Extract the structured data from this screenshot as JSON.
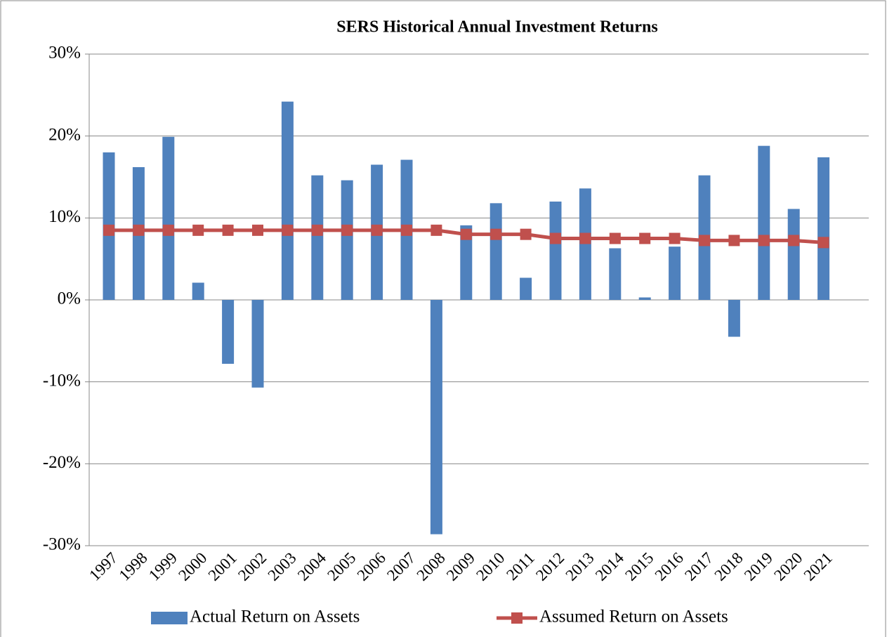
{
  "chart_data": {
    "type": "bar",
    "title": "SERS Historical Annual Investment Returns",
    "categories": [
      "1997",
      "1998",
      "1999",
      "2000",
      "2001",
      "2002",
      "2003",
      "2004",
      "2005",
      "2006",
      "2007",
      "2008",
      "2009",
      "2010",
      "2011",
      "2012",
      "2013",
      "2014",
      "2015",
      "2016",
      "2017",
      "2018",
      "2019",
      "2020",
      "2021"
    ],
    "series": [
      {
        "name": "Actual Return on Assets",
        "type": "bar",
        "color": "#4f81bd",
        "values": [
          18.0,
          16.2,
          19.9,
          2.1,
          -7.8,
          -10.7,
          24.2,
          15.2,
          14.6,
          16.5,
          17.1,
          -28.6,
          9.1,
          11.8,
          2.7,
          12.0,
          13.6,
          6.3,
          0.3,
          6.5,
          15.2,
          -4.5,
          18.8,
          11.1,
          17.4
        ]
      },
      {
        "name": "Assumed Return on Assets",
        "type": "line",
        "color": "#c0504d",
        "values": [
          8.5,
          8.5,
          8.5,
          8.5,
          8.5,
          8.5,
          8.5,
          8.5,
          8.5,
          8.5,
          8.5,
          8.5,
          8.0,
          8.0,
          8.0,
          7.5,
          7.5,
          7.5,
          7.5,
          7.5,
          7.25,
          7.25,
          7.25,
          7.25,
          7.0
        ]
      }
    ],
    "ylim": [
      -30,
      30
    ],
    "yticks": [
      {
        "value": -30,
        "label": "-30%"
      },
      {
        "value": -20,
        "label": "-20%"
      },
      {
        "value": -10,
        "label": "-10%"
      },
      {
        "value": 0,
        "label": "0%"
      },
      {
        "value": 10,
        "label": "10%"
      },
      {
        "value": 20,
        "label": "20%"
      },
      {
        "value": 30,
        "label": "30%"
      }
    ],
    "grid": true,
    "legend": "bottom"
  }
}
